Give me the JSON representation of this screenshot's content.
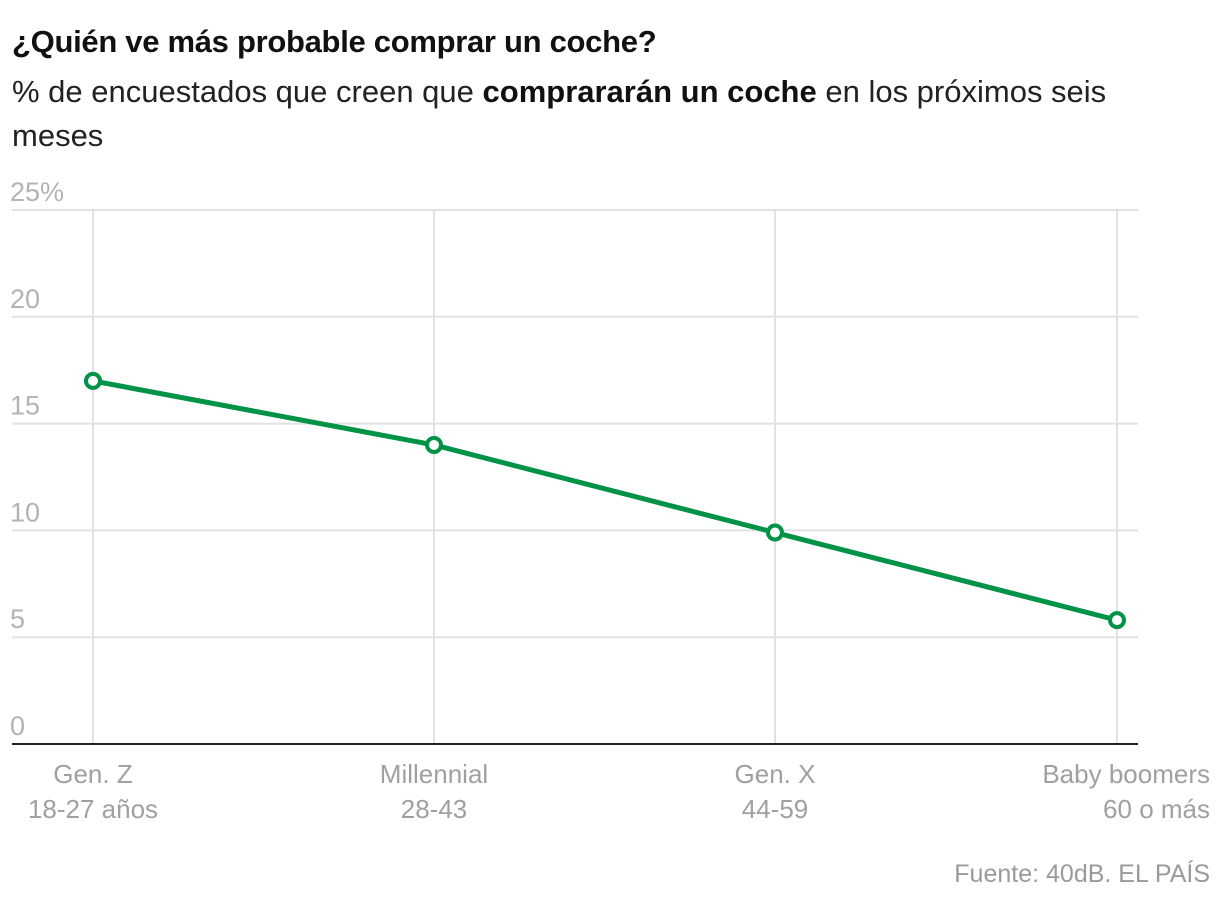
{
  "title": "¿Quién ve más probable comprar un coche?",
  "subtitle": {
    "before": "% de encuestados que creen que ",
    "bold": "comprararán un coche",
    "after": " en los próximos seis meses"
  },
  "source": "Fuente: 40dB. EL PAÍS",
  "colors": {
    "line": "#009246",
    "grid": "#e2e2e2",
    "axis": "#222222"
  },
  "chart_data": {
    "type": "line",
    "title": "¿Quién ve más probable comprar un coche?",
    "ylabel": "%",
    "ylim": [
      0,
      25
    ],
    "yticks": [
      0,
      5,
      10,
      15,
      20,
      25
    ],
    "ytick_labels": [
      "0",
      "5",
      "10",
      "15",
      "20",
      "25%"
    ],
    "categories": [
      {
        "line1": "Gen. Z",
        "line2": "18-27 años"
      },
      {
        "line1": "Millennial",
        "line2": "28-43"
      },
      {
        "line1": "Gen. X",
        "line2": "44-59"
      },
      {
        "line1": "Baby boomers",
        "line2": "60 o más"
      }
    ],
    "series": [
      {
        "name": "Comprarán un coche",
        "values": [
          17,
          14,
          9.9,
          5.8
        ]
      }
    ]
  }
}
